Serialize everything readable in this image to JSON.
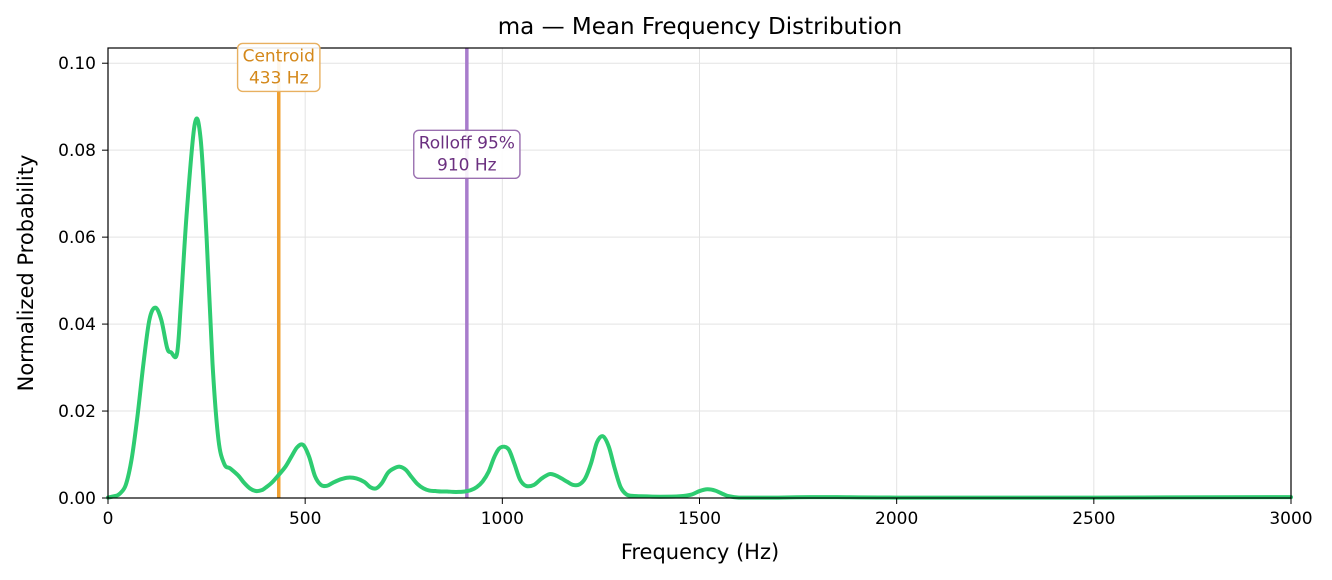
{
  "chart_data": {
    "type": "line",
    "title": "ma  —  Mean Frequency Distribution",
    "xlabel": "Frequency (Hz)",
    "ylabel": "Normalized Probability",
    "xlim": [
      0,
      3000
    ],
    "ylim": [
      0,
      0.1035
    ],
    "xticks": [
      0,
      500,
      1000,
      1500,
      2000,
      2500,
      3000
    ],
    "xtick_labels": [
      "0",
      "500",
      "1000",
      "1500",
      "2000",
      "2500",
      "3000"
    ],
    "yticks": [
      0,
      0.02,
      0.04,
      0.06,
      0.08,
      0.1
    ],
    "ytick_labels": [
      "0.00",
      "0.02",
      "0.04",
      "0.06",
      "0.08",
      "0.10"
    ],
    "grid": true,
    "series": [
      {
        "color": "#2ecc71",
        "x": [
          0,
          20,
          30,
          45,
          60,
          75,
          90,
          105,
          120,
          135,
          150,
          160,
          175,
          185,
          200,
          220,
          235,
          250,
          265,
          280,
          295,
          310,
          330,
          345,
          360,
          375,
          390,
          400,
          415,
          430,
          450,
          465,
          480,
          495,
          510,
          525,
          540,
          555,
          570,
          590,
          610,
          630,
          650,
          665,
          680,
          695,
          710,
          725,
          740,
          755,
          770,
          785,
          800,
          815,
          830,
          845,
          860,
          875,
          890,
          905,
          920,
          935,
          950,
          965,
          980,
          995,
          1015,
          1030,
          1045,
          1060,
          1080,
          1100,
          1120,
          1135,
          1150,
          1165,
          1180,
          1195,
          1210,
          1225,
          1240,
          1255,
          1270,
          1285,
          1300,
          1315,
          1330,
          1350,
          1400,
          1450,
          1480,
          1500,
          1520,
          1540,
          1560,
          1575,
          1600,
          1650,
          1700,
          1780,
          1850,
          2000,
          2500,
          3000
        ],
        "values": [
          0.0001,
          0.0005,
          0.001,
          0.003,
          0.009,
          0.019,
          0.031,
          0.041,
          0.0438,
          0.041,
          0.0345,
          0.0335,
          0.0332,
          0.045,
          0.066,
          0.086,
          0.0825,
          0.06,
          0.031,
          0.0135,
          0.0078,
          0.0068,
          0.0052,
          0.0035,
          0.0022,
          0.0016,
          0.0018,
          0.0024,
          0.0035,
          0.005,
          0.0072,
          0.0095,
          0.0117,
          0.0122,
          0.0095,
          0.005,
          0.003,
          0.0028,
          0.0035,
          0.0043,
          0.0047,
          0.0045,
          0.0037,
          0.0025,
          0.0022,
          0.0035,
          0.0058,
          0.0068,
          0.0072,
          0.0065,
          0.0048,
          0.0032,
          0.0022,
          0.0017,
          0.0016,
          0.0015,
          0.0015,
          0.0014,
          0.0014,
          0.0015,
          0.0018,
          0.0025,
          0.0038,
          0.006,
          0.0095,
          0.0116,
          0.0113,
          0.008,
          0.0042,
          0.0028,
          0.003,
          0.0045,
          0.0055,
          0.0052,
          0.0045,
          0.0037,
          0.003,
          0.0031,
          0.0045,
          0.008,
          0.0128,
          0.0142,
          0.0118,
          0.0068,
          0.0025,
          0.0008,
          0.0005,
          0.0004,
          0.0003,
          0.0004,
          0.0008,
          0.0016,
          0.002,
          0.0017,
          0.0009,
          0.0004,
          0.0001,
          0.0001,
          0.0001,
          0.0002,
          0.0002,
          0.0001,
          0.0001,
          0.0002
        ]
      }
    ],
    "vlines": [
      {
        "x": 433,
        "color": "#f0a030",
        "text_color": "#d4881a",
        "border_color": "#e8b060",
        "label_line1": "Centroid",
        "label_line2": "433 Hz",
        "label_y": 0.0995
      },
      {
        "x": 910,
        "color": "#a87ccc",
        "text_color": "#6b3080",
        "border_color": "#9a70b0",
        "label_line1": "Rolloff 95%",
        "label_line2": "910 Hz",
        "label_y": 0.0795
      }
    ]
  }
}
